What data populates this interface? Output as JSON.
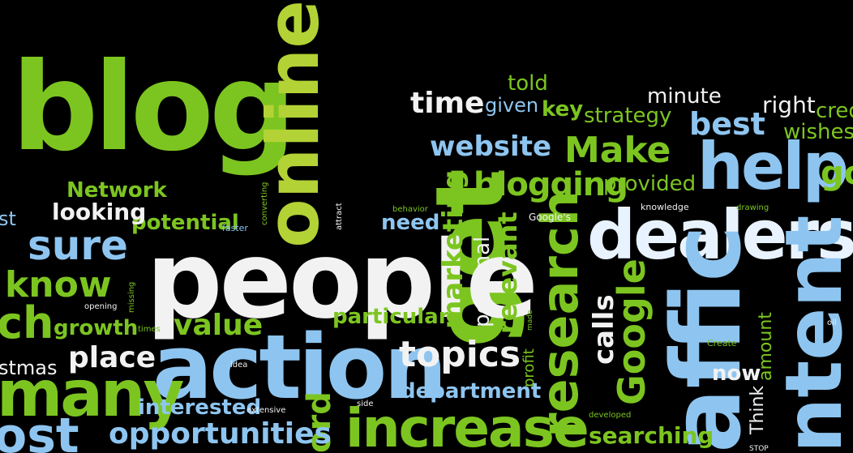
{
  "colors": {
    "background": "#000000",
    "green": "#7cc520",
    "lime": "#b3d235",
    "blue": "#8ec5f0",
    "white": "#f2f2f2"
  },
  "words": {
    "blog": "blog",
    "online": "online",
    "get": "get",
    "people": "people",
    "action": "action",
    "dealership": "dealersh",
    "traffic": "affic",
    "content": "ntent",
    "increase": "increase",
    "research": "research",
    "help": "help",
    "many": "many",
    "most": "ost",
    "sure": "sure",
    "know": "know",
    "topics": "topics",
    "place": "place",
    "opportunities": "opportunities",
    "value": "value",
    "time": "time",
    "website": "website",
    "make": "Make",
    "blogging": "blogging",
    "best": "best",
    "google": "Google",
    "calls": "calls",
    "marketing": "marketing",
    "relevant": "relevant",
    "personal": "personal",
    "particular": "particular",
    "growth": "growth",
    "interested": "interested",
    "department": "department",
    "searching": "searching",
    "now": "now",
    "potential": "potential",
    "looking": "looking",
    "network": "Network",
    "need": "need",
    "minute": "minute",
    "right": "right",
    "told": "told",
    "given": "given",
    "key": "key",
    "strategy": "strategy",
    "provided": "provided",
    "wishes": "wishes",
    "cred": "cred",
    "go": "go",
    "christmas": "stmas",
    "each": "ch",
    "amount": "amount",
    "think": "Think",
    "profit": "profit",
    "word": "ord",
    "googles": "Google's",
    "knowledge": "knowledge",
    "drawing": "drawing",
    "behavior": "behavior",
    "converting": "converting",
    "attract": "attract",
    "faster": "faster",
    "opening": "opening",
    "missing": "missing",
    "times": "times",
    "idea": "idea",
    "extensive": "extensive",
    "side": "side",
    "developed": "developed",
    "stop": "STOP",
    "create": "Create",
    "oil": "oil",
    "made": "made",
    "st": "st"
  }
}
